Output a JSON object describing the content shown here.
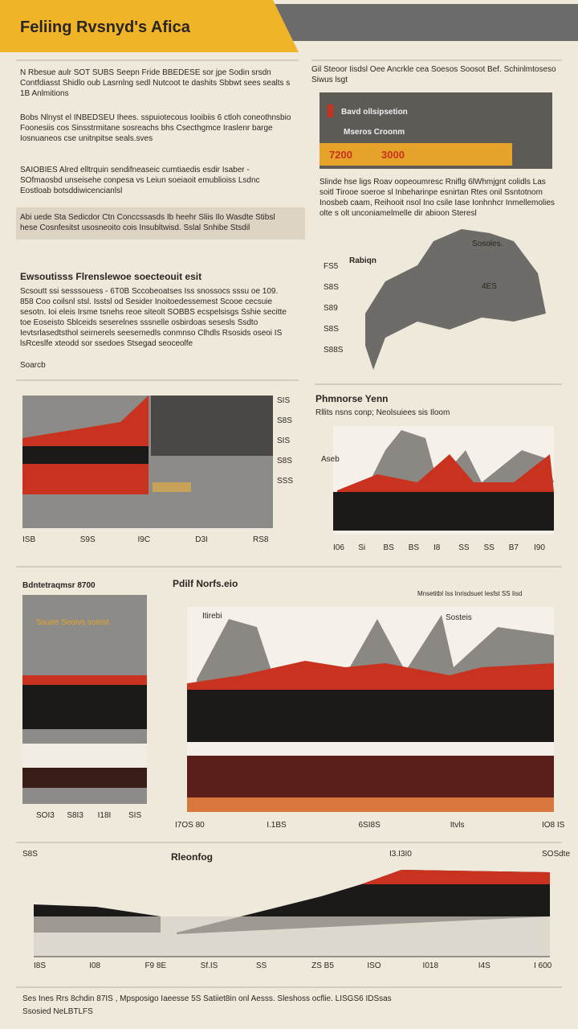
{
  "header": {
    "title": "Feliing Rvsnyd's Afica"
  },
  "left": {
    "paragraphs": [
      "N Rbesue aulr SOT SUBS Seepn Fride BBEDESE sor jpe Sodin srsdn Contfdiasst Shidlo oub Lasrnlng sedl Nutcoot te dashits Sbbwt sees sealts s 1B Anlmitions",
      "Bobs Nlnyst el INBEDSEU Ihees. sspuiotecous Iooibiis 6 ctloh coneothnsbio Foonesiis cos Sinsstrmitane sosreachs bhs Csecthgmce Iraslenr barge Iosnuaneos cse unitnpitse seals.sves",
      "SAIOBIES Alred elltrquin sendifneaseic cumtiaedis esdir Isaber - SOfmaosbd unseisehe conpesa vs Leiun soeiaoit emublioiss Lsdnc Eostloab botsddiwicencianlsl",
      "Abi uede Sta Sedicdor Ctn Conccssasds Ib heehr Sliis Ilo Wasdte Stibsl hese Cosnfesitst usosneoito cois Insubltwisd. Sslal Snhibe Stsdil"
    ],
    "heading": "Ewsoutisss Flrenslewoe soecteouit esit",
    "body": "Scsoutt ssi sesssouess - 6T0B Sccobeoatses Iss snossocs sssu oe 109. 858 Coo coilsnl stsl. Isstsl od Sesider Inoitoedessemest Scooe cecsuie sesotn. Ioi eleis Irsme tsnehs reoe siteolt SOBBS ecspelsisgs Sshie secitte toe Eoseisto Sblceids seserelnes sssnelle osbirdoas sesesls Ssdto Ievtsrlasedtsthol seirnerels seesernedls conmnso Clhdls Rsosids oseoi IS lsRceslfe xteodd sor ssedoes Stsegad seoceolfe",
    "footnote": "Soarcb"
  },
  "right": {
    "note": "Gil Steoor Iisdsl Oee Ancrkle cea Soesos Soosot Bef. Schinlmtoseso Siwus lsgt",
    "panel_title": "Bavd ollsipsetion",
    "panel_subtitle": "Mseros Croonm",
    "panel_figures": [
      "7200",
      "3000"
    ],
    "paragraph": "Slinde hse ligs Roav oopeoumresc Rniflg 6lWhmjgnt colidls Las soitl Tirooe soeroe sl Inbeharinpe esnirtan Rtes onil Ssntotnom Inosbeb caam, Reihooit nsol Ino csile Iase Ionhnhcr Inmellemolies olte s olt unconiamelmelle dir abioon Steresl",
    "map_label": "Rabiqn",
    "map_regions": [
      "Sosoles.",
      "4ES"
    ],
    "map_scale": [
      "FS5",
      "S8S",
      "S89",
      "S8S",
      "S88S"
    ]
  },
  "charts": [
    {
      "ticks": [
        "ISB",
        "S9S",
        "I9C",
        "D3I",
        "RS8"
      ],
      "side": [
        "SIS",
        "S8S",
        "SIS",
        "S8S",
        "SSS"
      ]
    },
    {
      "title": "Phmnorse Yenn",
      "subtitle": "Rllits nsns conp; Neolsuiees sis Iloom",
      "label": "Aseb",
      "ticks": [
        "I06",
        "Si",
        "BS",
        "BS",
        "I8",
        "SS",
        "SS",
        "B7",
        "I90"
      ]
    },
    {
      "title": "Bdntetraqmsr 8700",
      "subtitle": "Ssuee Seoivs sotest",
      "ticks": [
        "SOI3",
        "S8I3",
        "I18I",
        "SIS"
      ]
    },
    {
      "title": "Pdilf Norfs.eio",
      "note": "Mnsetitbl Iss Inrisdsuet Iesfst SS Iisd",
      "labels": [
        "Itirebi",
        "Sosteis"
      ],
      "ticks": [
        "I7OS 80",
        "I.1BS",
        "6SI8S",
        "Itvls",
        "IO8 IS"
      ]
    },
    {
      "title": "Rleonfog",
      "corner": "S8S",
      "top": "I3.I3I0",
      "right": "SOSdte",
      "ticks": [
        "I8S",
        "I08",
        "F9 8E",
        "Sf.IS",
        "SS",
        "ZS B5",
        "ISO",
        "I018",
        "I4S",
        "I 600"
      ]
    }
  ],
  "footer": {
    "lines": [
      "Ses Ines Rrs 8chdin 87IS , Mpsposigo Iaeesse 5S Satiiet8in onl Aesss. Sleshoss ocflie. LISGS6 IDSsas",
      "Ssosied NeLBTLFS"
    ]
  }
}
